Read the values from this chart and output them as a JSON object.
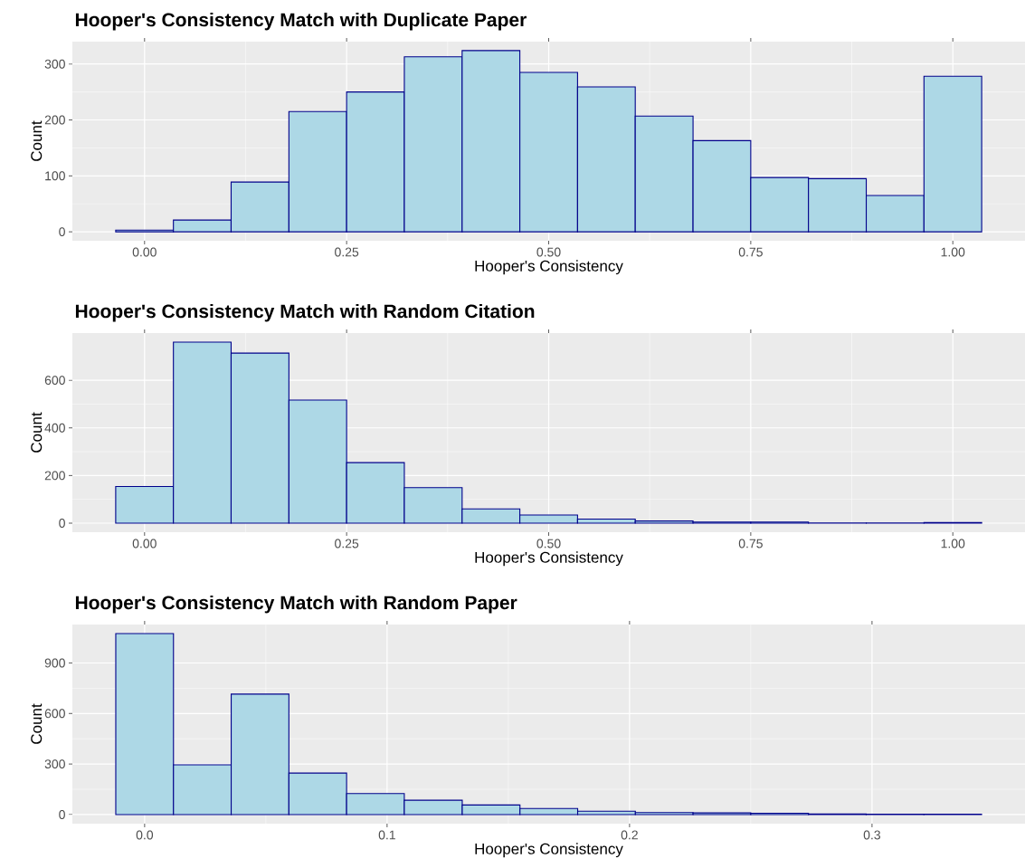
{
  "chart_data": [
    {
      "type": "histogram",
      "title": "Hooper's Consistency Match with Duplicate Paper",
      "xlabel": "Hooper's Consistency",
      "ylabel": "Count",
      "color": "#add8e6",
      "bins": [
        -0.0357,
        0.0357,
        0.1071,
        0.1786,
        0.25,
        0.3214,
        0.3929,
        0.4643,
        0.5357,
        0.6071,
        0.6786,
        0.75,
        0.8214,
        0.8929,
        0.9643,
        1.0357
      ],
      "values": [
        3,
        21,
        89,
        215,
        250,
        313,
        324,
        285,
        259,
        207,
        163,
        97,
        95,
        65,
        278
      ],
      "xlim": [
        -0.0893,
        1.0893
      ],
      "ylim": [
        -16,
        340
      ],
      "xticks": [
        {
          "value": 0,
          "label": "0.00"
        },
        {
          "value": 0.25,
          "label": "0.25"
        },
        {
          "value": 0.5,
          "label": "0.50"
        },
        {
          "value": 0.75,
          "label": "0.75"
        },
        {
          "value": 1,
          "label": "1.00"
        }
      ],
      "yticks": [
        0,
        100,
        200,
        300
      ],
      "grid": true
    },
    {
      "type": "histogram",
      "title": "Hooper's Consistency Match with Random Citation",
      "xlabel": "Hooper's Consistency",
      "ylabel": "Count",
      "color": "#add8e6",
      "bins": [
        -0.0357,
        0.0357,
        0.1071,
        0.1786,
        0.25,
        0.3214,
        0.3929,
        0.4643,
        0.5357,
        0.6071,
        0.6786,
        0.75,
        0.8214,
        0.8929,
        0.9643,
        1.0357
      ],
      "values": [
        154,
        760,
        714,
        517,
        254,
        149,
        60,
        34,
        17,
        9,
        5,
        5,
        1,
        1,
        3
      ],
      "xlim": [
        -0.0893,
        1.0893
      ],
      "ylim": [
        -38,
        798
      ],
      "xticks": [
        {
          "value": 0,
          "label": "0.00"
        },
        {
          "value": 0.25,
          "label": "0.25"
        },
        {
          "value": 0.5,
          "label": "0.50"
        },
        {
          "value": 0.75,
          "label": "0.75"
        },
        {
          "value": 1,
          "label": "1.00"
        }
      ],
      "yticks": [
        0,
        200,
        400,
        600
      ],
      "grid": true
    },
    {
      "type": "histogram",
      "title": "Hooper's Consistency Match with Random Paper",
      "xlabel": "Hooper's Consistency",
      "ylabel": "Count",
      "color": "#add8e6",
      "bins": [
        -0.0119,
        0.0119,
        0.0357,
        0.0595,
        0.0833,
        0.1071,
        0.131,
        0.1548,
        0.1786,
        0.2024,
        0.2262,
        0.25,
        0.2738,
        0.2976,
        0.3214,
        0.3452
      ],
      "values": [
        1074,
        295,
        715,
        246,
        125,
        85,
        57,
        36,
        20,
        12,
        10,
        8,
        4,
        2,
        2
      ],
      "xlim": [
        -0.0298,
        0.3631
      ],
      "ylim": [
        -54,
        1128
      ],
      "xticks": [
        {
          "value": 0,
          "label": "0.0"
        },
        {
          "value": 0.1,
          "label": "0.1"
        },
        {
          "value": 0.2,
          "label": "0.2"
        },
        {
          "value": 0.3,
          "label": "0.3"
        }
      ],
      "yticks": [
        0,
        300,
        600,
        900
      ],
      "grid": true
    }
  ]
}
